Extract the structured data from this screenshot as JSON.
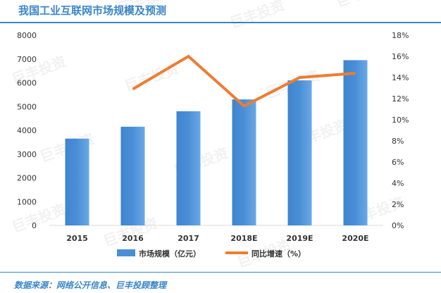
{
  "header": {
    "title": "我国工业互联网市场规模及预测"
  },
  "footer": {
    "source": "数据来源：网络公开信息、巨丰投顾整理"
  },
  "watermark": {
    "text": "巨丰投资"
  },
  "colors": {
    "bar": "#4a8fd6",
    "line": "#ed7d31",
    "accent": "#3a86c8"
  },
  "chart_data": {
    "type": "bar",
    "categories": [
      "2015",
      "2016",
      "2017",
      "2018E",
      "2019E",
      "2020E"
    ],
    "series": [
      {
        "name": "市场规模（亿元）",
        "type": "bar",
        "axis": "left",
        "values": [
          3650,
          4150,
          4800,
          5300,
          6100,
          6950
        ]
      },
      {
        "name": "同比增速（%）",
        "type": "line",
        "axis": "right",
        "values": [
          null,
          12.9,
          16.0,
          11.3,
          14.0,
          14.4
        ]
      }
    ],
    "ylim": [
      0,
      8000
    ],
    "yticks": [
      "0",
      "1000",
      "2000",
      "3000",
      "4000",
      "5000",
      "6000",
      "7000",
      "8000"
    ],
    "y2lim": [
      0,
      18
    ],
    "y2ticks": [
      "0%",
      "2%",
      "4%",
      "6%",
      "8%",
      "10%",
      "12%",
      "14%",
      "16%",
      "18%"
    ],
    "grid": false,
    "legend": "bottom"
  }
}
